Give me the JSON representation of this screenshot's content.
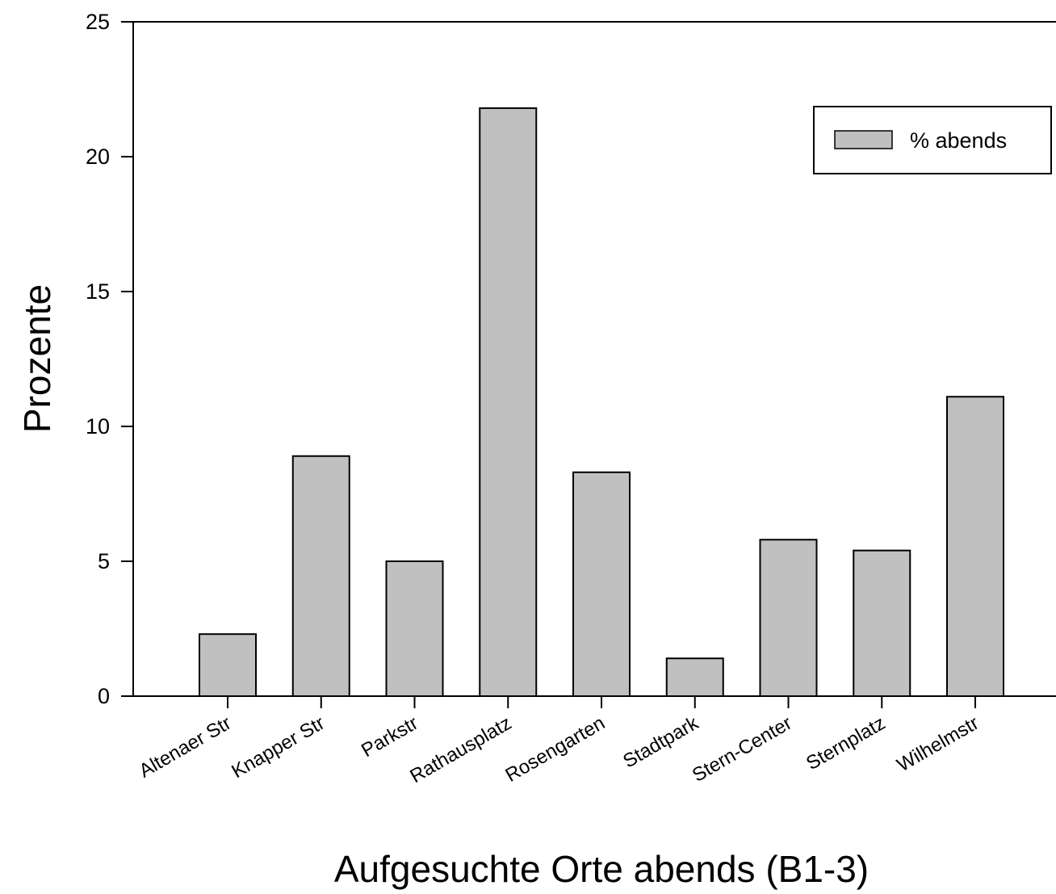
{
  "chart_data": {
    "type": "bar",
    "xlabel": "Aufgesuchte Orte abends (B1-3)",
    "ylabel": "Prozente",
    "ylim": [
      0,
      25
    ],
    "yticks": [
      0,
      5,
      10,
      15,
      20,
      25
    ],
    "grid": false,
    "legend_position": "top-right",
    "categories": [
      "Altenaer Str",
      "Knapper Str",
      "Parkstr",
      "Rathausplatz",
      "Rosengarten",
      "Stadtpark",
      "Stern-Center",
      "Sternplatz",
      "Wilhelmstr"
    ],
    "series": [
      {
        "name": "% abends",
        "color": "#c0c0c0",
        "values": [
          2.3,
          8.9,
          5.0,
          21.8,
          8.3,
          1.4,
          5.8,
          5.4,
          11.1
        ]
      }
    ]
  }
}
